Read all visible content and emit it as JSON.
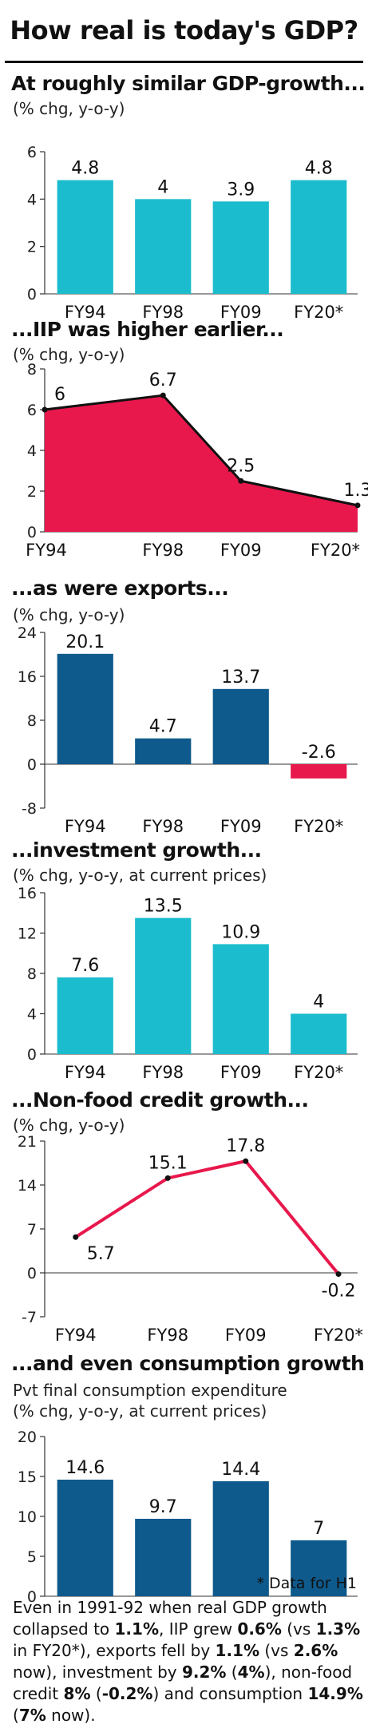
{
  "title": "How real is today's GDP?",
  "panels": [
    {
      "title": "At roughly similar GDP-growth...",
      "subtitle": "(% chg, y-o-y)",
      "subtitle2": "",
      "chart_type": "bar",
      "color": "#1bbccd",
      "categories": [
        "FY94",
        "FY98",
        "FY09",
        "FY20*"
      ],
      "values": [
        4.8,
        4,
        3.9,
        4.8
      ],
      "labels": [
        "4.8",
        "4",
        "3.9",
        "4.8"
      ],
      "y_ticks": [
        0,
        2,
        4,
        6
      ],
      "ylim": [
        0,
        6
      ]
    },
    {
      "title": "...IIP was higher earlier...",
      "subtitle": "(% chg, y-o-y)",
      "subtitle2": "",
      "chart_type": "area",
      "color": "#e8184c",
      "categories": [
        "FY94",
        "FY98",
        "FY09",
        "FY20*"
      ],
      "values": [
        6,
        6.7,
        2.5,
        1.3
      ],
      "labels": [
        "6",
        "6.7",
        "2.5",
        "1.3"
      ],
      "y_ticks": [
        0,
        2,
        4,
        6,
        8
      ],
      "ylim": [
        0,
        8
      ]
    },
    {
      "title": "...as were exports...",
      "subtitle": "(% chg, y-o-y)",
      "subtitle2": "",
      "chart_type": "bar",
      "color": "#0f5a8c",
      "neg_color": "#e8184c",
      "categories": [
        "FY94",
        "FY98",
        "FY09",
        "FY20*"
      ],
      "values": [
        20.1,
        4.7,
        13.7,
        -2.6
      ],
      "labels": [
        "20.1",
        "4.7",
        "13.7",
        "-2.6"
      ],
      "y_ticks": [
        -8,
        0,
        8,
        16,
        24
      ],
      "ylim": [
        -8,
        24
      ]
    },
    {
      "title": "...investment growth...",
      "subtitle": "(% chg, y-o-y, at current prices)",
      "subtitle2": "",
      "chart_type": "bar",
      "color": "#1bbccd",
      "categories": [
        "FY94",
        "FY98",
        "FY09",
        "FY20*"
      ],
      "values": [
        7.6,
        13.5,
        10.9,
        4
      ],
      "labels": [
        "7.6",
        "13.5",
        "10.9",
        "4"
      ],
      "y_ticks": [
        0,
        4,
        8,
        12,
        16
      ],
      "ylim": [
        0,
        16
      ]
    },
    {
      "title": "...Non-food credit growth...",
      "subtitle": "(% chg, y-o-y)",
      "subtitle2": "",
      "chart_type": "line",
      "color": "#e8184c",
      "categories": [
        "FY94",
        "FY98",
        "FY09",
        "FY20*"
      ],
      "values": [
        5.7,
        15.1,
        17.8,
        -0.2
      ],
      "labels": [
        "5.7",
        "15.1",
        "17.8",
        "-0.2"
      ],
      "y_ticks": [
        -7,
        0,
        7,
        14,
        21
      ],
      "ylim": [
        -7,
        21
      ]
    },
    {
      "title": "...and even consumption growth",
      "subtitle": "Pvt final consumption expenditure",
      "subtitle2": "(% chg, y-o-y, at current prices)",
      "chart_type": "bar",
      "color": "#0f5a8c",
      "categories": [
        "FY94",
        "FY98",
        "FY09",
        "FY20*"
      ],
      "values": [
        14.6,
        9.7,
        14.4,
        7
      ],
      "labels": [
        "14.6",
        "9.7",
        "14.4",
        "7"
      ],
      "y_ticks": [
        0,
        5,
        10,
        15,
        20
      ],
      "ylim": [
        0,
        20
      ]
    }
  ],
  "chart_data": [
    {
      "type": "bar",
      "title": "At roughly similar GDP-growth...",
      "ylabel": "(% chg, y-o-y)",
      "categories": [
        "FY94",
        "FY98",
        "FY09",
        "FY20*"
      ],
      "values": [
        4.8,
        4,
        3.9,
        4.8
      ],
      "ylim": [
        0,
        6
      ]
    },
    {
      "type": "area",
      "title": "...IIP was higher earlier...",
      "ylabel": "(% chg, y-o-y)",
      "categories": [
        "FY94",
        "FY98",
        "FY09",
        "FY20*"
      ],
      "values": [
        6,
        6.7,
        2.5,
        1.3
      ],
      "ylim": [
        0,
        8
      ]
    },
    {
      "type": "bar",
      "title": "...as were exports...",
      "ylabel": "(% chg, y-o-y)",
      "categories": [
        "FY94",
        "FY98",
        "FY09",
        "FY20*"
      ],
      "values": [
        20.1,
        4.7,
        13.7,
        -2.6
      ],
      "ylim": [
        -8,
        24
      ]
    },
    {
      "type": "bar",
      "title": "...investment growth...",
      "ylabel": "(% chg, y-o-y, at current prices)",
      "categories": [
        "FY94",
        "FY98",
        "FY09",
        "FY20*"
      ],
      "values": [
        7.6,
        13.5,
        10.9,
        4
      ],
      "ylim": [
        0,
        16
      ]
    },
    {
      "type": "line",
      "title": "...Non-food credit growth...",
      "ylabel": "(% chg, y-o-y)",
      "categories": [
        "FY94",
        "FY98",
        "FY09",
        "FY20*"
      ],
      "values": [
        5.7,
        15.1,
        17.8,
        -0.2
      ],
      "ylim": [
        -7,
        21
      ]
    },
    {
      "type": "bar",
      "title": "...and even consumption growth",
      "subtitle": "Pvt final consumption expenditure",
      "ylabel": "(% chg, y-o-y, at current prices)",
      "categories": [
        "FY94",
        "FY98",
        "FY09",
        "FY20*"
      ],
      "values": [
        14.6,
        9.7,
        14.4,
        7
      ],
      "ylim": [
        0,
        20
      ]
    }
  ],
  "footnote": "* Data for H1",
  "summary": {
    "t1": "Even in 1991-92 when real GDP growth collapsed to ",
    "b1": "1.1%",
    "t2": ", IIP grew ",
    "b2": "0.6%",
    "t3": " (vs ",
    "b3": "1.3%",
    "t4": " in FY20*), exports fell by ",
    "b4": "1.1%",
    "t5": " (vs ",
    "b5": "2.6%",
    "t6": " now), investment by ",
    "b6": "9.2%",
    "t7": " (",
    "b7": "4%",
    "t8": "), non-food credit ",
    "b8": "8%",
    "t9": " (",
    "b9": "-0.2%",
    "t10": ") and consumption ",
    "b10": "14.9%",
    "t11": " (",
    "b11": "7%",
    "t12": " now)."
  }
}
